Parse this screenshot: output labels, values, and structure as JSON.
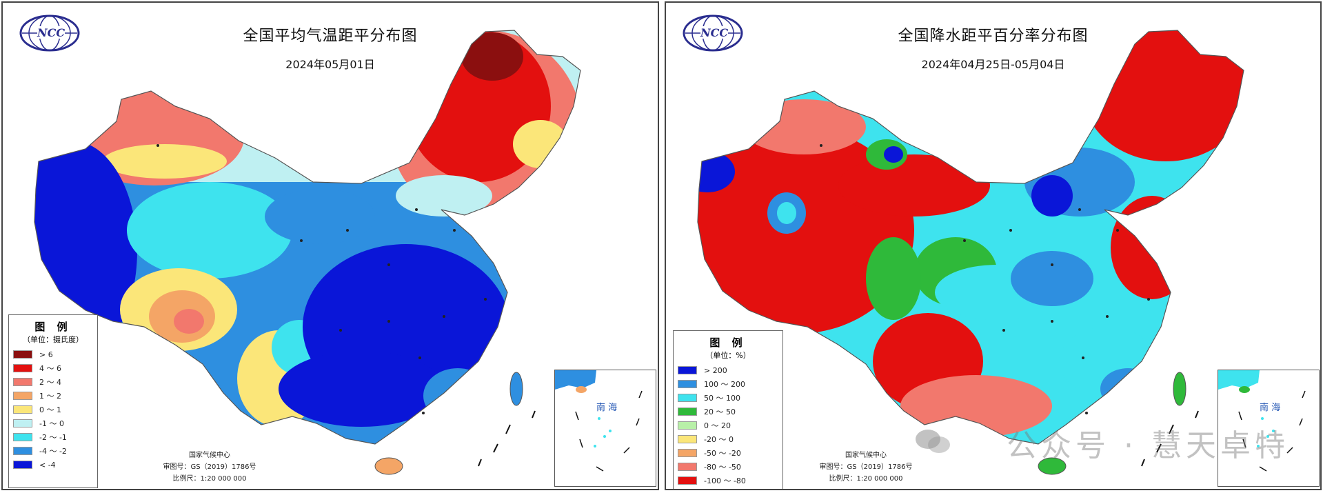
{
  "left_panel": {
    "logo_text": "NCC",
    "title": "全国平均气温距平分布图",
    "date": "2024年05月01日",
    "legend": {
      "title": "图 例",
      "unit": "（单位：摄氏度）",
      "items": [
        {
          "label": "> 6",
          "color": "#8b0f0f"
        },
        {
          "label": "4 ～ 6",
          "color": "#e3100f"
        },
        {
          "label": "2 ～ 4",
          "color": "#f2786d"
        },
        {
          "label": "1 ～ 2",
          "color": "#f4a566"
        },
        {
          "label": "0 ～ 1",
          "color": "#fbe679"
        },
        {
          "label": "-1 ～ 0",
          "color": "#bff0f2"
        },
        {
          "label": "-2 ～ -1",
          "color": "#3ee3ee"
        },
        {
          "label": "-4 ～ -2",
          "color": "#2e8fe0"
        },
        {
          "label": "< -4",
          "color": "#0a16d8"
        }
      ]
    },
    "footer": {
      "org": "国家气候中心",
      "map_no": "审图号：GS（2019）1786号",
      "scale": "比例尺：1:20 000 000"
    },
    "inset_label": "南 海"
  },
  "right_panel": {
    "logo_text": "NCC",
    "title": "全国降水距平百分率分布图",
    "date": "2024年04月25日-05月04日",
    "legend": {
      "title": "图 例",
      "unit": "（单位：%）",
      "items": [
        {
          "label": "> 200",
          "color": "#0a16d8"
        },
        {
          "label": "100 ～ 200",
          "color": "#2e8fe0"
        },
        {
          "label": "50 ～ 100",
          "color": "#3ee3ee"
        },
        {
          "label": "20 ～ 50",
          "color": "#2fb93a"
        },
        {
          "label": "0 ～ 20",
          "color": "#b8f0a8"
        },
        {
          "label": "-20 ～ 0",
          "color": "#fbe679"
        },
        {
          "label": "-50 ～ -20",
          "color": "#f4a566"
        },
        {
          "label": "-80 ～ -50",
          "color": "#f2786d"
        },
        {
          "label": "-100 ～ -80",
          "color": "#e3100f"
        }
      ]
    },
    "footer": {
      "org": "国家气候中心",
      "map_no": "审图号：GS（2019）1786号",
      "scale": "比例尺：1:20 000 000"
    },
    "inset_label": "南 海"
  },
  "watermark": "公众号 · 慧天卓特"
}
